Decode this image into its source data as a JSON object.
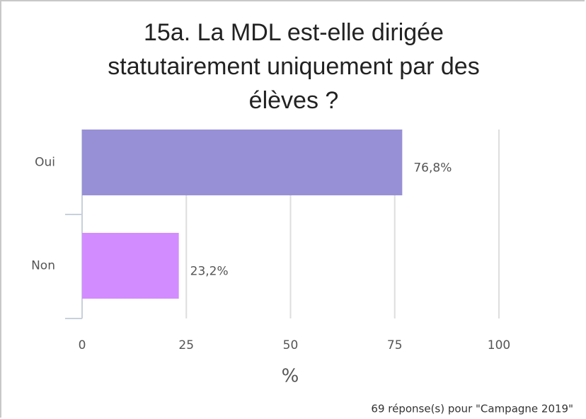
{
  "chart_data": {
    "type": "bar",
    "orientation": "horizontal",
    "title": "15a. La MDL est-elle dirigée statutairement uniquement par des élèves ?",
    "categories": [
      "Oui",
      "Non"
    ],
    "values": [
      76.8,
      23.2
    ],
    "value_labels": [
      "76,8%",
      "23,2%"
    ],
    "colors": [
      "#9890d6",
      "#d38cff"
    ],
    "xlim": [
      0,
      100
    ],
    "xticks": [
      0,
      25,
      50,
      75,
      100
    ],
    "xlabel": "%",
    "grid": true,
    "footnote": "69 réponse(s) pour \"Campagne 2019\""
  }
}
